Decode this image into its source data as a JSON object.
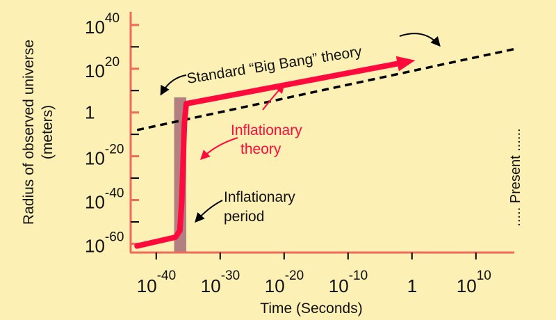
{
  "chart_data": {
    "type": "line",
    "title": "",
    "xlabel": "Time (Seconds)",
    "ylabel_line1": "Radius of observed universe",
    "ylabel_line2": "(meters)",
    "x_scale": "log",
    "y_scale": "log",
    "xlim_exponent": [
      -44,
      16
    ],
    "ylim_exponent": [
      -64,
      46
    ],
    "x_ticks": [
      {
        "base": "10",
        "exp": "-40",
        "value_exp": -40
      },
      {
        "base": "10",
        "exp": "-30",
        "value_exp": -30
      },
      {
        "base": "10",
        "exp": "-20",
        "value_exp": -20
      },
      {
        "base": "10",
        "exp": "-10",
        "value_exp": -10
      },
      {
        "base": "1",
        "exp": "",
        "value_exp": 0
      },
      {
        "base": "10",
        "exp": "10",
        "value_exp": 10
      }
    ],
    "y_ticks": [
      {
        "base": "10",
        "exp": "40",
        "value_exp": 40
      },
      {
        "base": "10",
        "exp": "20",
        "value_exp": 20
      },
      {
        "base": "1",
        "exp": "",
        "value_exp": 0
      },
      {
        "base": "10",
        "exp": "-20",
        "value_exp": -20
      },
      {
        "base": "10",
        "exp": "-40",
        "value_exp": -40
      },
      {
        "base": "10",
        "exp": "-60",
        "value_exp": -60
      }
    ],
    "series": [
      {
        "name": "Standard “Big Bang” theory",
        "style": "dashed",
        "color": "#000000",
        "points_log10": [
          [
            -43,
            -8
          ],
          [
            16,
            29
          ]
        ]
      },
      {
        "name": "Inflationary theory",
        "style": "solid",
        "color": "#ff0a3c",
        "points_log10": [
          [
            -43,
            -61
          ],
          [
            -37,
            -57
          ],
          [
            -36.3,
            -54
          ],
          [
            -36,
            -40
          ],
          [
            -35.6,
            -5
          ],
          [
            -35.3,
            4
          ],
          [
            -1,
            23
          ]
        ]
      }
    ],
    "shaded_region": {
      "label": "Inflationary period",
      "x_exp_range": [
        -37.2,
        -35.3
      ],
      "color": "#b28080"
    },
    "annotations": {
      "standard_line1": "Standard “Big Bang” theory",
      "inflationary_line1": "Inflationary",
      "inflationary_line2": "theory",
      "period_line1": "Inflationary",
      "period_line2": "period",
      "present": "..... Present ......"
    },
    "colors": {
      "background": "#fdf0b4",
      "axis": "#f06a5a",
      "inflation": "#ff0a3c"
    }
  }
}
